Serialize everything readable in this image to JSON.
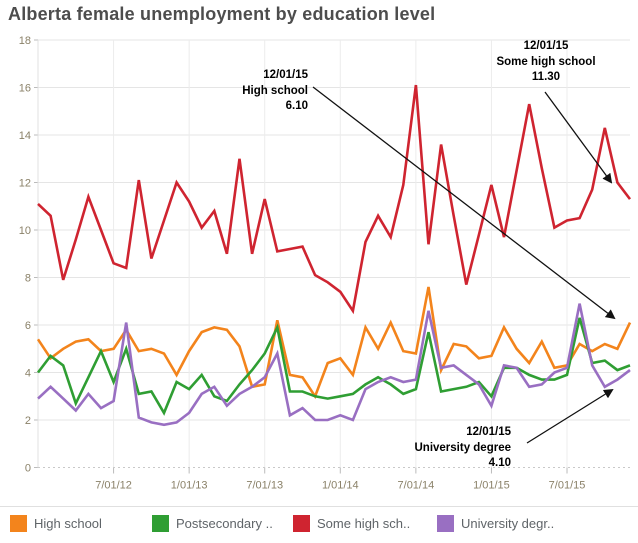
{
  "title": "Alberta female unemployment by education level",
  "annotations": [
    {
      "date": "12/01/15",
      "label": "High school",
      "value": "6.10"
    },
    {
      "date": "12/01/15",
      "label": "Some high school",
      "value": "11.30"
    },
    {
      "date": "12/01/15",
      "label": "University degree",
      "value": "4.10"
    }
  ],
  "legend": {
    "items": [
      {
        "label": "High school",
        "color": "#F3841C"
      },
      {
        "label": "Postsecondary ..",
        "color": "#2F9E33"
      },
      {
        "label": "Some high sch..",
        "color": "#CF2430"
      },
      {
        "label": "University degr..",
        "color": "#996FC2"
      }
    ]
  },
  "chart_data": {
    "type": "line",
    "title": "Alberta female unemployment by education level",
    "xlabel": "",
    "ylabel": "",
    "ylim": [
      0,
      18
    ],
    "grid": true,
    "legend_position": "bottom",
    "x": [
      "1/01/12",
      "2/01/12",
      "3/01/12",
      "4/01/12",
      "5/01/12",
      "6/01/12",
      "7/01/12",
      "8/01/12",
      "9/01/12",
      "10/01/12",
      "11/01/12",
      "12/01/12",
      "1/01/13",
      "2/01/13",
      "3/01/13",
      "4/01/13",
      "5/01/13",
      "6/01/13",
      "7/01/13",
      "8/01/13",
      "9/01/13",
      "10/01/13",
      "11/01/13",
      "12/01/13",
      "1/01/14",
      "2/01/14",
      "3/01/14",
      "4/01/14",
      "5/01/14",
      "6/01/14",
      "7/01/14",
      "8/01/14",
      "9/01/14",
      "10/01/14",
      "11/01/14",
      "12/01/14",
      "1/01/15",
      "2/01/15",
      "3/01/15",
      "4/01/15",
      "5/01/15",
      "6/01/15",
      "7/01/15",
      "8/01/15",
      "9/01/15",
      "10/01/15",
      "11/01/15",
      "12/01/15"
    ],
    "x_axis_ticks": [
      "7/01/12",
      "1/01/13",
      "7/01/13",
      "1/01/14",
      "7/01/14",
      "1/01/15",
      "7/01/15"
    ],
    "y_axis_ticks": [
      "0",
      "2",
      "4",
      "6",
      "8",
      "10",
      "12",
      "14",
      "16",
      "18"
    ],
    "series": [
      {
        "name": "High school",
        "color": "#F3841C",
        "values": [
          5.4,
          4.6,
          5.0,
          5.3,
          5.4,
          4.9,
          5.0,
          5.8,
          4.9,
          5.0,
          4.8,
          3.9,
          4.9,
          5.7,
          5.9,
          5.8,
          5.1,
          3.4,
          3.5,
          6.2,
          3.9,
          3.8,
          3.0,
          4.4,
          4.6,
          3.9,
          5.9,
          5.0,
          6.1,
          4.9,
          4.8,
          7.6,
          4.1,
          5.2,
          5.1,
          4.6,
          4.7,
          5.9,
          5.0,
          4.4,
          5.3,
          4.2,
          4.3,
          5.2,
          4.9,
          5.2,
          5.0,
          6.1
        ]
      },
      {
        "name": "Postsecondary ..",
        "color": "#2F9E33",
        "values": [
          4.0,
          4.7,
          4.3,
          2.7,
          3.8,
          4.9,
          3.6,
          5.0,
          3.1,
          3.2,
          2.3,
          3.6,
          3.3,
          3.9,
          3.0,
          2.8,
          3.5,
          4.1,
          4.8,
          5.9,
          3.2,
          3.2,
          3.0,
          2.9,
          3.0,
          3.1,
          3.5,
          3.8,
          3.5,
          3.1,
          3.3,
          5.7,
          3.2,
          3.3,
          3.4,
          3.6,
          3.0,
          4.2,
          4.2,
          3.9,
          3.7,
          3.7,
          3.9,
          6.3,
          4.4,
          4.5,
          4.1,
          4.3
        ]
      },
      {
        "name": "Some high sch..",
        "color": "#CF2430",
        "values": [
          11.1,
          10.6,
          7.9,
          9.6,
          11.4,
          10.0,
          8.6,
          8.4,
          12.1,
          8.8,
          10.4,
          12.0,
          11.2,
          10.1,
          10.8,
          9.0,
          13.0,
          9.0,
          11.3,
          9.1,
          9.2,
          9.3,
          8.1,
          7.8,
          7.4,
          6.6,
          9.5,
          10.6,
          9.7,
          11.9,
          16.1,
          9.4,
          13.6,
          10.6,
          7.7,
          9.8,
          11.9,
          9.7,
          12.5,
          15.3,
          12.6,
          10.1,
          10.4,
          10.5,
          11.7,
          14.3,
          12.0,
          11.3
        ]
      },
      {
        "name": "University degr..",
        "color": "#996FC2",
        "values": [
          2.9,
          3.4,
          2.9,
          2.4,
          3.1,
          2.5,
          2.8,
          6.1,
          2.1,
          1.9,
          1.8,
          1.9,
          2.3,
          3.1,
          3.4,
          2.6,
          3.1,
          3.4,
          3.8,
          4.8,
          2.2,
          2.5,
          2.0,
          2.0,
          2.2,
          2.0,
          3.3,
          3.6,
          3.8,
          3.6,
          3.7,
          6.6,
          4.2,
          4.3,
          3.9,
          3.5,
          2.6,
          4.3,
          4.2,
          3.4,
          3.5,
          4.0,
          4.2,
          6.9,
          4.3,
          3.4,
          3.7,
          4.1
        ]
      }
    ]
  }
}
